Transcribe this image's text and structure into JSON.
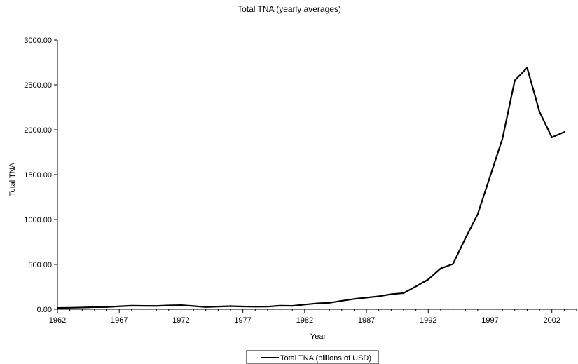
{
  "chart_data": {
    "type": "line",
    "title": "Total TNA (yearly averages)",
    "xlabel": "Year",
    "ylabel": "Total TNA",
    "xlim": [
      1962,
      2004
    ],
    "ylim": [
      0,
      3000
    ],
    "x_ticks": [
      "1962",
      "1967",
      "1972",
      "1977",
      "1982",
      "1987",
      "1992",
      "1997",
      "2002"
    ],
    "y_ticks": [
      "0.00",
      "500.00",
      "1000.00",
      "1500.00",
      "2000.00",
      "2500.00",
      "3000.00"
    ],
    "grid": false,
    "legend_position": "bottom",
    "series": [
      {
        "name": "Total TNA (billions of USD)",
        "color": "#000000",
        "x": [
          1962,
          1963,
          1964,
          1965,
          1966,
          1967,
          1968,
          1969,
          1970,
          1971,
          1972,
          1973,
          1974,
          1975,
          1976,
          1977,
          1978,
          1979,
          1980,
          1981,
          1982,
          1983,
          1984,
          1985,
          1986,
          1987,
          1988,
          1989,
          1990,
          1991,
          1992,
          1993,
          1994,
          1995,
          1996,
          1997,
          1998,
          1999,
          2000,
          2001,
          2002,
          2003
        ],
        "values": [
          15,
          17,
          20,
          24,
          25,
          33,
          40,
          38,
          37,
          43,
          46,
          36,
          25,
          30,
          35,
          31,
          29,
          30,
          40,
          38,
          52,
          66,
          72,
          94,
          115,
          130,
          145,
          168,
          180,
          255,
          333,
          455,
          505,
          790,
          1060,
          1480,
          1900,
          2550,
          2690,
          2200,
          1915,
          1975
        ]
      }
    ]
  }
}
